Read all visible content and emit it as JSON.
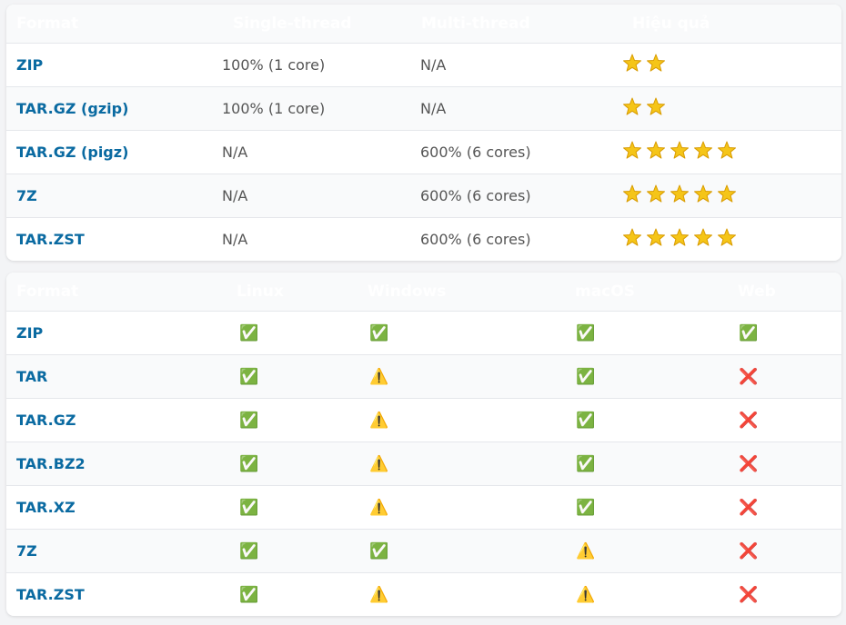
{
  "tables": [
    {
      "headers": [
        "Format",
        "Single-thread",
        "Multi-thread",
        "Hiệu quả"
      ],
      "rows": [
        [
          "ZIP",
          "100% (1 core)",
          "N/A",
          2
        ],
        [
          "TAR.GZ (gzip)",
          "100% (1 core)",
          "N/A",
          2
        ],
        [
          "TAR.GZ (pigz)",
          "N/A",
          "600% (6 cores)",
          5
        ],
        [
          "7Z",
          "N/A",
          "600% (6 cores)",
          5
        ],
        [
          "TAR.ZST",
          "N/A",
          "600% (6 cores)",
          5
        ]
      ]
    },
    {
      "headers": [
        "Format",
        "Linux",
        "Windows",
        "macOS",
        "Web"
      ],
      "rows": [
        [
          "ZIP",
          "✅",
          "✅",
          "✅",
          "✅"
        ],
        [
          "TAR",
          "✅",
          "⚠️",
          "✅",
          "❌"
        ],
        [
          "TAR.GZ",
          "✅",
          "⚠️",
          "✅",
          "❌"
        ],
        [
          "TAR.BZ2",
          "✅",
          "⚠️",
          "✅",
          "❌"
        ],
        [
          "TAR.XZ",
          "✅",
          "⚠️",
          "✅",
          "❌"
        ],
        [
          "7Z",
          "✅",
          "✅",
          "⚠️",
          "❌"
        ],
        [
          "TAR.ZST",
          "✅",
          "⚠️",
          "⚠️",
          "❌"
        ]
      ]
    }
  ]
}
